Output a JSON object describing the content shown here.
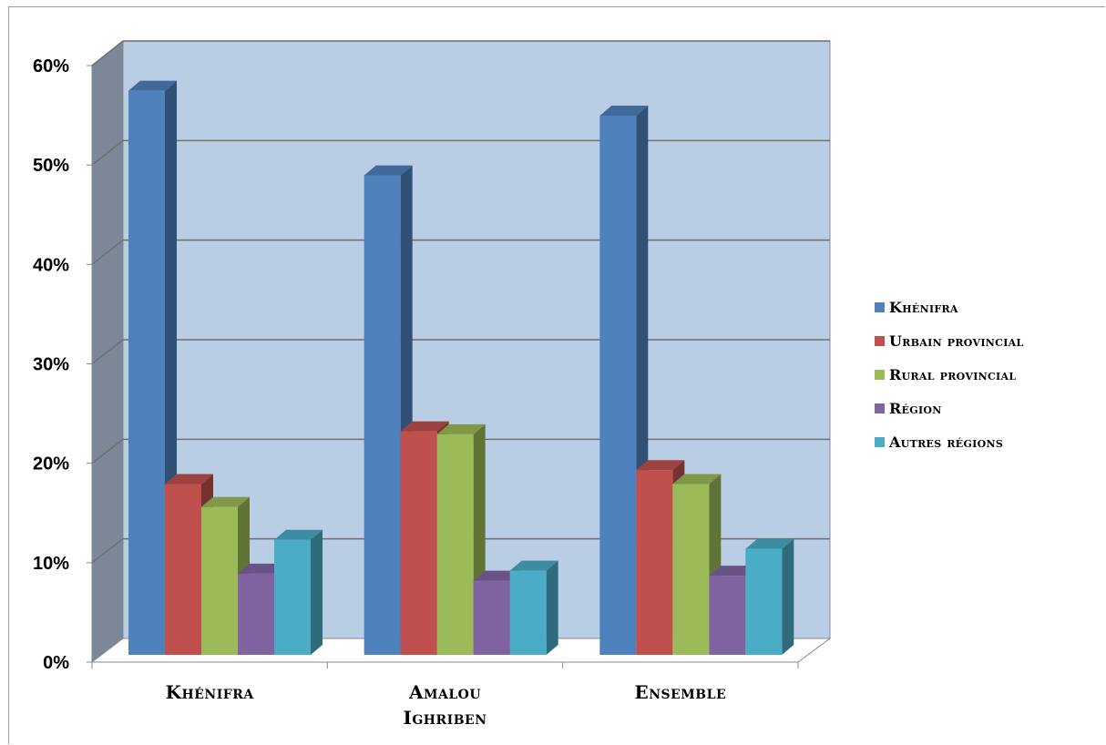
{
  "chart_data": {
    "type": "bar",
    "style": "3d-clustered-column",
    "categories": [
      [
        "Khénifra"
      ],
      [
        "Amalou",
        "Ighriben"
      ],
      [
        "Ensemble"
      ]
    ],
    "series": [
      {
        "name": "Khénifra",
        "color": "#4f81bd",
        "values": [
          55,
          46.5,
          52.5
        ]
      },
      {
        "name": "Urbain provincial",
        "color": "#c0504d",
        "values": [
          15.5,
          20.8,
          16.9
        ]
      },
      {
        "name": "Rural provincial",
        "color": "#9bbb59",
        "values": [
          13.2,
          20.5,
          15.5
        ]
      },
      {
        "name": "Région",
        "color": "#8064a2",
        "values": [
          6.5,
          5.8,
          6.3
        ]
      },
      {
        "name": "Autres  régions",
        "color": "#4bacc6",
        "values": [
          9.9,
          6.8,
          9.0
        ]
      }
    ],
    "yticks": [
      "0%",
      "10%",
      "20%",
      "30%",
      "40%",
      "50%",
      "60%"
    ],
    "ylim": [
      0,
      60
    ],
    "grid": true,
    "legend_position": "right",
    "wall_color": "#b9cde5",
    "side_wall_color": "#7c8797"
  }
}
